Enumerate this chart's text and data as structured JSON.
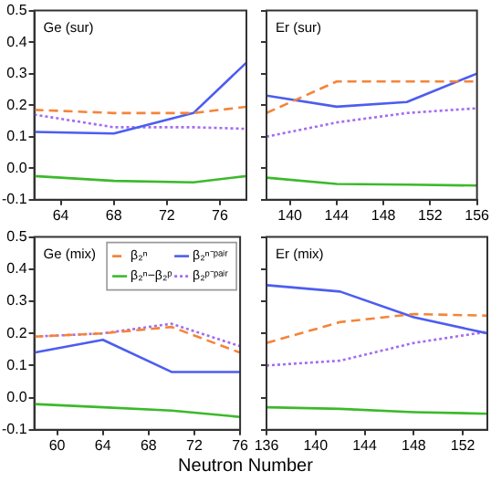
{
  "chart_data": [
    {
      "type": "line",
      "title": "Ge (sur)",
      "x": [
        62,
        68,
        74,
        78
      ],
      "xlim": [
        62,
        78
      ],
      "xticks": [
        64,
        68,
        72,
        76
      ],
      "ylim": [
        -0.1,
        0.5
      ],
      "yticks": [
        {
          "value": -0.1,
          "label": "-0.1"
        },
        {
          "value": 0,
          "label": "0.0"
        },
        {
          "value": 0.1,
          "label": "0.1"
        },
        {
          "value": 0.2,
          "label": "0.2"
        },
        {
          "value": 0.3,
          "label": "0.3"
        },
        {
          "value": 0.4,
          "label": "0.4"
        },
        {
          "value": 0.5,
          "label": "0.5"
        }
      ],
      "series": [
        {
          "color": "#f4843a",
          "line_style": "dashed",
          "values": [
            0.185,
            0.175,
            0.175,
            0.195
          ]
        },
        {
          "color": "#4c5df0",
          "line_style": "solid",
          "values": [
            0.115,
            0.11,
            0.175,
            0.335
          ]
        },
        {
          "color": "#3cb92c",
          "line_style": "solid",
          "values": [
            -0.025,
            -0.04,
            -0.045,
            -0.025
          ]
        },
        {
          "color": "#a46cf0",
          "line_style": "dotted",
          "values": [
            0.17,
            0.13,
            0.13,
            0.125
          ]
        }
      ]
    },
    {
      "type": "line",
      "title": "Er (sur)",
      "x": [
        138,
        144,
        150,
        156
      ],
      "xlim": [
        138,
        156
      ],
      "xticks": [
        140,
        144,
        148,
        152,
        156
      ],
      "ylim": [
        -0.1,
        0.5
      ],
      "yticks": [
        {
          "value": -0.1,
          "label": null
        },
        {
          "value": 0,
          "label": null
        },
        {
          "value": 0.1,
          "label": null
        },
        {
          "value": 0.2,
          "label": null
        },
        {
          "value": 0.3,
          "label": null
        },
        {
          "value": 0.4,
          "label": null
        },
        {
          "value": 0.5,
          "label": null
        }
      ],
      "tick_labels": "x",
      "series": [
        {
          "color": "#f4843a",
          "line_style": "dashed",
          "values": [
            0.175,
            0.275,
            0.275,
            0.275
          ]
        },
        {
          "color": "#4c5df0",
          "line_style": "solid",
          "values": [
            0.23,
            0.195,
            0.21,
            0.3
          ]
        },
        {
          "color": "#3cb92c",
          "line_style": "solid",
          "values": [
            -0.03,
            -0.05,
            -0.052,
            -0.055
          ]
        },
        {
          "color": "#a46cf0",
          "line_style": "dotted",
          "values": [
            0.1,
            0.145,
            0.175,
            0.19
          ]
        }
      ]
    },
    {
      "type": "line",
      "title": "Ge (mix)",
      "xlabel": "Neutron Number",
      "legend": "top right",
      "x": [
        58,
        64,
        70,
        76
      ],
      "xlim": [
        58,
        76
      ],
      "xticks": [
        60,
        64,
        68,
        72,
        76
      ],
      "ylim": [
        -0.1,
        0.5
      ],
      "yticks": [
        {
          "value": -0.1,
          "label": "-0.1"
        },
        {
          "value": 0,
          "label": "0.0"
        },
        {
          "value": 0.1,
          "label": "0.1"
        },
        {
          "value": 0.2,
          "label": "0.2"
        },
        {
          "value": 0.3,
          "label": "0.3"
        },
        {
          "value": 0.4,
          "label": "0.4"
        },
        {
          "value": 0.5,
          "label": "0.5"
        }
      ],
      "series": [
        {
          "name": "β₂ⁿ",
          "color": "#f4843a",
          "line_style": "dashed",
          "values": [
            0.19,
            0.2,
            0.22,
            0.14
          ]
        },
        {
          "name": "β₂ⁿ⁻ᵖᵃⁱʳ",
          "color": "#4c5df0",
          "line_style": "solid",
          "values": [
            0.14,
            0.18,
            0.08,
            0.08
          ]
        },
        {
          "name": "β₂ⁿ−β₂ᵖ",
          "color": "#3cb92c",
          "line_style": "solid",
          "values": [
            -0.02,
            -0.03,
            -0.04,
            -0.06
          ]
        },
        {
          "name": "β₂ᵖ⁻ᵖᵃⁱʳ",
          "color": "#a46cf0",
          "line_style": "dotted",
          "values": [
            0.19,
            0.2,
            0.23,
            0.16
          ]
        }
      ]
    },
    {
      "type": "line",
      "title": "Er (mix)",
      "x": [
        136,
        142,
        148,
        154
      ],
      "xlim": [
        136,
        154
      ],
      "xticks": [
        136,
        140,
        144,
        148,
        152
      ],
      "ylim": [
        -0.1,
        0.5
      ],
      "yticks": [
        {
          "value": -0.1,
          "label": null
        },
        {
          "value": 0,
          "label": null
        },
        {
          "value": 0.1,
          "label": null
        },
        {
          "value": 0.2,
          "label": null
        },
        {
          "value": 0.3,
          "label": null
        },
        {
          "value": 0.4,
          "label": null
        },
        {
          "value": 0.5,
          "label": null
        }
      ],
      "tick_labels": "x",
      "series": [
        {
          "color": "#f4843a",
          "line_style": "dashed",
          "values": [
            0.17,
            0.235,
            0.26,
            0.255
          ]
        },
        {
          "color": "#4c5df0",
          "line_style": "solid",
          "values": [
            0.35,
            0.33,
            0.25,
            0.2
          ]
        },
        {
          "color": "#3cb92c",
          "line_style": "solid",
          "values": [
            -0.03,
            -0.035,
            -0.045,
            -0.05
          ]
        },
        {
          "color": "#a46cf0",
          "line_style": "dotted",
          "values": [
            0.1,
            0.115,
            0.17,
            0.205
          ]
        }
      ]
    }
  ]
}
